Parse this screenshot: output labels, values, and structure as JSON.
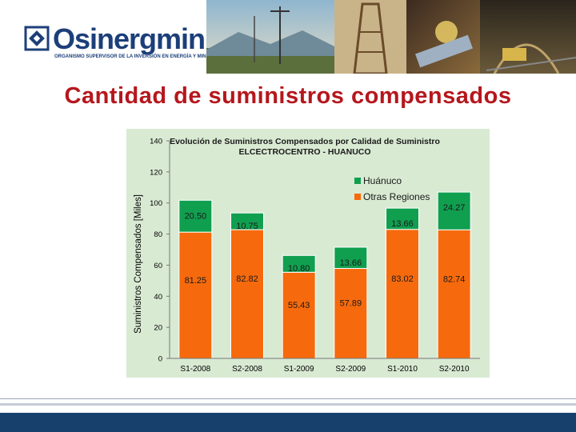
{
  "header": {
    "logo_name": "Osinergmin",
    "logo_subtitle": "ORGANISMO SUPERVISOR DE LA INVERSIÓN EN ENERGÍA Y MINERÍA",
    "logo_icon": "osinergmin-logo-icon"
  },
  "slide": {
    "title": "Cantidad de suministros compensados"
  },
  "colors": {
    "title": "#b5171d",
    "huanuco": "#109f4f",
    "otras_regiones": "#f66a0d",
    "chart_bg": "#d9ead3",
    "footer": "#17406d"
  },
  "chart_data": {
    "type": "bar",
    "stacked": true,
    "title": "Evolución de Suministros Compensados por Calidad de Suministro",
    "subtitle": "ELCECTROCENTRO - HUANUCO",
    "xlabel": "",
    "ylabel": "Suministros Compensados [Miles]",
    "ylim": [
      0,
      140
    ],
    "yticks": [
      "0",
      "20",
      "40",
      "60",
      "80",
      "100",
      "120",
      "140"
    ],
    "categories": [
      "S1-2008",
      "S2-2008",
      "S1-2009",
      "S2-2009",
      "S1-2010",
      "S2-2010"
    ],
    "series": [
      {
        "name": "Otras Regiones",
        "values": [
          81.25,
          82.82,
          55.43,
          57.89,
          83.02,
          82.74
        ],
        "labels": [
          "81.25",
          "82.82",
          "55.43",
          "57.89",
          "83.02",
          "82.74"
        ]
      },
      {
        "name": "Huánuco",
        "values": [
          20.5,
          10.75,
          10.8,
          13.66,
          13.66,
          24.27
        ],
        "labels": [
          "20.50",
          "10.75",
          "10.80",
          "13.66",
          "13.66",
          "24.27"
        ]
      }
    ],
    "legend": [
      "Huánuco",
      "Otras Regiones"
    ],
    "legend_position": "top-right",
    "grid": false
  }
}
